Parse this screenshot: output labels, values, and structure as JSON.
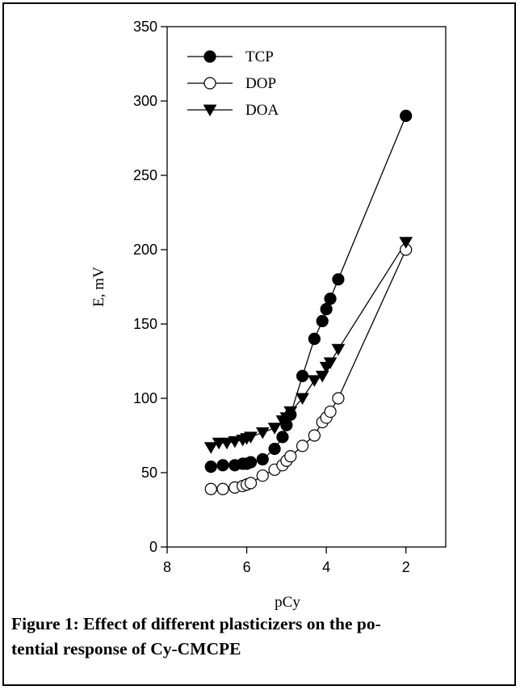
{
  "caption": {
    "line1": "Figure 1: Effect of different plasticizers on the po-",
    "line2": "tential response of Cy-CMCPE"
  },
  "chart_data": {
    "type": "line",
    "xlabel": "pCy",
    "ylabel": "E, mV",
    "xlim": [
      8,
      1
    ],
    "ylim": [
      0,
      350
    ],
    "x_reversed": true,
    "xticks": [
      8,
      6,
      4,
      2
    ],
    "yticks": [
      0,
      50,
      100,
      150,
      200,
      250,
      300,
      350
    ],
    "legend_position": "top-left",
    "series": [
      {
        "name": "TCP",
        "marker": "filled-circle",
        "x": [
          6.9,
          6.6,
          6.3,
          6.1,
          6.0,
          5.9,
          5.6,
          5.3,
          5.1,
          5.0,
          4.9,
          4.6,
          4.3,
          4.1,
          4.0,
          3.9,
          3.7,
          2.0
        ],
        "y": [
          54,
          55,
          55,
          56,
          56,
          57,
          59,
          66,
          74,
          82,
          89,
          115,
          140,
          152,
          160,
          167,
          180,
          290
        ]
      },
      {
        "name": "DOP",
        "marker": "open-circle",
        "x": [
          6.9,
          6.6,
          6.3,
          6.1,
          6.0,
          5.9,
          5.6,
          5.3,
          5.1,
          5.0,
          4.9,
          4.6,
          4.3,
          4.1,
          4.0,
          3.9,
          3.7,
          2.0
        ],
        "y": [
          39,
          39,
          40,
          41,
          42,
          43,
          48,
          52,
          55,
          58,
          61,
          68,
          75,
          84,
          87,
          91,
          100,
          200
        ]
      },
      {
        "name": "DOA",
        "marker": "filled-triangle-down",
        "x": [
          6.9,
          6.7,
          6.5,
          6.3,
          6.1,
          6.0,
          5.9,
          5.6,
          5.3,
          5.1,
          5.0,
          4.9,
          4.6,
          4.3,
          4.1,
          4.0,
          3.9,
          3.7,
          2.0
        ],
        "y": [
          67,
          70,
          70,
          71,
          72,
          73,
          74,
          77,
          80,
          85,
          87,
          91,
          100,
          112,
          115,
          121,
          124,
          133,
          205
        ]
      }
    ]
  }
}
